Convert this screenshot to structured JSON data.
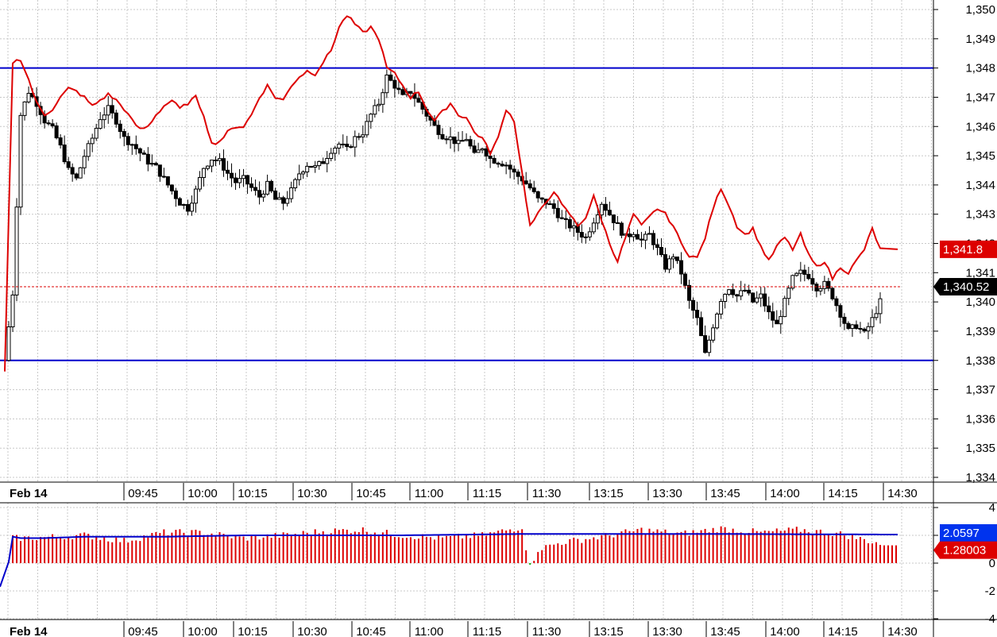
{
  "chart_data": [
    {
      "type": "candlestick",
      "name": "price-panel",
      "ylim": [
        1333.5,
        1350.3
      ],
      "y_ticks": [
        "1,334",
        "1,335",
        "1,336",
        "1,337",
        "1,338",
        "1,339",
        "1,340",
        "1,341",
        "1,342",
        "1,343",
        "1,344",
        "1,345",
        "1,346",
        "1,347",
        "1,348",
        "1,349",
        "1,350"
      ],
      "y_tick_values": [
        1334,
        1335,
        1336,
        1337,
        1338,
        1339,
        1340,
        1341,
        1342,
        1343,
        1344,
        1345,
        1346,
        1347,
        1348,
        1349,
        1350
      ],
      "x_date_label": "Feb 14",
      "x_ticks": [
        "09:45",
        "10:00",
        "10:15",
        "10:30",
        "10:45",
        "11:00",
        "11:15",
        "11:30",
        "13:15",
        "13:30",
        "13:45",
        "14:00",
        "14:15",
        "14:30"
      ],
      "horizontal_levels": [
        1348.0,
        1338.0
      ],
      "last_price": 1340.52,
      "last_price_label": "1,340.52",
      "overlay_last": 1341.8,
      "overlay_last_label": "1,341.8",
      "colors": {
        "candle": "#000000",
        "overlay": "#dd0000",
        "level": "#0000cc",
        "grid": "#c8c8c8"
      },
      "candle_close_path": [
        [
          0,
          1338.0
        ],
        [
          2,
          1340.3
        ],
        [
          4,
          1346.4
        ],
        [
          6,
          1347.2
        ],
        [
          8,
          1346.8
        ],
        [
          10,
          1346.2
        ],
        [
          12,
          1345.9
        ],
        [
          14,
          1345.3
        ],
        [
          16,
          1344.5
        ],
        [
          18,
          1344.2
        ],
        [
          20,
          1345.0
        ],
        [
          22,
          1345.6
        ],
        [
          24,
          1346.3
        ],
        [
          26,
          1346.6
        ],
        [
          28,
          1346.2
        ],
        [
          30,
          1345.6
        ],
        [
          32,
          1345.4
        ],
        [
          34,
          1345.1
        ],
        [
          36,
          1344.8
        ],
        [
          38,
          1344.6
        ],
        [
          40,
          1344.2
        ],
        [
          42,
          1343.8
        ],
        [
          44,
          1343.4
        ],
        [
          46,
          1343.2
        ],
        [
          48,
          1343.8
        ],
        [
          50,
          1344.6
        ],
        [
          52,
          1344.9
        ],
        [
          54,
          1344.8
        ],
        [
          56,
          1344.4
        ],
        [
          58,
          1344.1
        ],
        [
          60,
          1344.2
        ],
        [
          62,
          1343.9
        ],
        [
          64,
          1343.6
        ],
        [
          66,
          1344.0
        ],
        [
          68,
          1343.5
        ],
        [
          70,
          1343.4
        ],
        [
          72,
          1343.8
        ],
        [
          74,
          1344.4
        ],
        [
          76,
          1344.7
        ],
        [
          78,
          1344.6
        ],
        [
          80,
          1344.8
        ],
        [
          82,
          1345.2
        ],
        [
          84,
          1345.4
        ],
        [
          86,
          1345.2
        ],
        [
          88,
          1345.6
        ],
        [
          90,
          1345.8
        ],
        [
          92,
          1346.4
        ],
        [
          94,
          1346.8
        ],
        [
          96,
          1347.7
        ],
        [
          98,
          1347.4
        ],
        [
          100,
          1347.0
        ],
        [
          102,
          1347.2
        ],
        [
          104,
          1346.8
        ],
        [
          106,
          1346.4
        ],
        [
          108,
          1346.0
        ],
        [
          110,
          1345.7
        ],
        [
          112,
          1345.6
        ],
        [
          114,
          1345.4
        ],
        [
          116,
          1345.6
        ],
        [
          118,
          1345.0
        ],
        [
          120,
          1345.3
        ],
        [
          122,
          1344.9
        ],
        [
          124,
          1344.8
        ],
        [
          126,
          1344.7
        ],
        [
          128,
          1344.4
        ],
        [
          130,
          1344.2
        ],
        [
          132,
          1343.9
        ],
        [
          134,
          1343.5
        ],
        [
          136,
          1343.4
        ],
        [
          138,
          1343.2
        ],
        [
          140,
          1342.8
        ],
        [
          142,
          1342.6
        ],
        [
          144,
          1342.4
        ],
        [
          146,
          1342.2
        ],
        [
          148,
          1342.8
        ],
        [
          150,
          1343.4
        ],
        [
          152,
          1343.0
        ],
        [
          154,
          1342.6
        ],
        [
          156,
          1342.2
        ],
        [
          158,
          1342.4
        ],
        [
          160,
          1342.1
        ],
        [
          162,
          1342.3
        ],
        [
          164,
          1341.8
        ],
        [
          166,
          1341.2
        ],
        [
          168,
          1341.6
        ],
        [
          170,
          1341.0
        ],
        [
          172,
          1340.0
        ],
        [
          174,
          1339.4
        ],
        [
          176,
          1338.2
        ],
        [
          178,
          1339.2
        ],
        [
          180,
          1340.1
        ],
        [
          182,
          1340.5
        ],
        [
          184,
          1340.2
        ],
        [
          186,
          1340.4
        ],
        [
          188,
          1340.0
        ],
        [
          190,
          1340.2
        ],
        [
          192,
          1339.6
        ],
        [
          194,
          1339.2
        ],
        [
          196,
          1340.0
        ],
        [
          198,
          1340.8
        ],
        [
          200,
          1341.0
        ],
        [
          202,
          1340.9
        ],
        [
          204,
          1340.5
        ],
        [
          206,
          1340.6
        ],
        [
          208,
          1340.2
        ],
        [
          210,
          1339.6
        ],
        [
          212,
          1339.0
        ],
        [
          214,
          1339.2
        ],
        [
          216,
          1338.9
        ],
        [
          218,
          1339.4
        ],
        [
          220,
          1340.0
        ]
      ],
      "overlay_path": [
        [
          0,
          1337.6
        ],
        [
          2,
          1348.2
        ],
        [
          4,
          1348.3
        ],
        [
          6,
          1347.6
        ],
        [
          8,
          1346.8
        ],
        [
          10,
          1346.4
        ],
        [
          12,
          1346.6
        ],
        [
          14,
          1347.0
        ],
        [
          16,
          1347.3
        ],
        [
          18,
          1347.2
        ],
        [
          20,
          1347.0
        ],
        [
          22,
          1346.7
        ],
        [
          24,
          1346.9
        ],
        [
          26,
          1347.1
        ],
        [
          28,
          1346.9
        ],
        [
          30,
          1346.6
        ],
        [
          32,
          1346.2
        ],
        [
          34,
          1345.9
        ],
        [
          36,
          1346.0
        ],
        [
          38,
          1346.4
        ],
        [
          40,
          1346.7
        ],
        [
          42,
          1346.9
        ],
        [
          44,
          1346.6
        ],
        [
          46,
          1346.8
        ],
        [
          48,
          1347.0
        ],
        [
          50,
          1346.4
        ],
        [
          52,
          1345.4
        ],
        [
          54,
          1345.5
        ],
        [
          56,
          1345.8
        ],
        [
          58,
          1346.0
        ],
        [
          60,
          1346.0
        ],
        [
          62,
          1346.4
        ],
        [
          64,
          1347.0
        ],
        [
          66,
          1347.4
        ],
        [
          68,
          1347.0
        ],
        [
          70,
          1346.9
        ],
        [
          72,
          1347.4
        ],
        [
          74,
          1347.7
        ],
        [
          76,
          1347.9
        ],
        [
          78,
          1347.8
        ],
        [
          80,
          1348.2
        ],
        [
          82,
          1348.6
        ],
        [
          84,
          1349.4
        ],
        [
          86,
          1349.8
        ],
        [
          88,
          1349.5
        ],
        [
          90,
          1349.2
        ],
        [
          92,
          1349.4
        ],
        [
          94,
          1349.0
        ],
        [
          96,
          1348.0
        ],
        [
          98,
          1347.8
        ],
        [
          100,
          1347.4
        ],
        [
          102,
          1347.0
        ],
        [
          104,
          1347.2
        ],
        [
          106,
          1346.6
        ],
        [
          108,
          1346.2
        ],
        [
          110,
          1346.5
        ],
        [
          112,
          1346.8
        ],
        [
          114,
          1346.4
        ],
        [
          116,
          1346.3
        ],
        [
          118,
          1345.8
        ],
        [
          120,
          1345.6
        ],
        [
          122,
          1345.1
        ],
        [
          124,
          1345.6
        ],
        [
          126,
          1346.6
        ],
        [
          128,
          1346.2
        ],
        [
          130,
          1344.4
        ],
        [
          132,
          1342.6
        ],
        [
          134,
          1343.0
        ],
        [
          136,
          1343.4
        ],
        [
          138,
          1343.8
        ],
        [
          140,
          1343.3
        ],
        [
          142,
          1343.0
        ],
        [
          144,
          1342.6
        ],
        [
          146,
          1342.9
        ],
        [
          148,
          1343.6
        ],
        [
          150,
          1342.8
        ],
        [
          152,
          1342.0
        ],
        [
          154,
          1341.4
        ],
        [
          156,
          1342.2
        ],
        [
          158,
          1343.0
        ],
        [
          160,
          1342.6
        ],
        [
          162,
          1342.9
        ],
        [
          164,
          1343.2
        ],
        [
          166,
          1343.0
        ],
        [
          168,
          1342.6
        ],
        [
          170,
          1342.0
        ],
        [
          172,
          1341.6
        ],
        [
          174,
          1341.5
        ],
        [
          176,
          1342.2
        ],
        [
          178,
          1343.2
        ],
        [
          180,
          1343.9
        ],
        [
          182,
          1343.3
        ],
        [
          184,
          1342.6
        ],
        [
          186,
          1342.3
        ],
        [
          188,
          1342.5
        ],
        [
          190,
          1341.9
        ],
        [
          192,
          1341.4
        ],
        [
          194,
          1341.9
        ],
        [
          196,
          1342.2
        ],
        [
          198,
          1341.8
        ],
        [
          200,
          1342.3
        ],
        [
          202,
          1341.6
        ],
        [
          204,
          1341.2
        ],
        [
          206,
          1341.4
        ],
        [
          208,
          1340.8
        ],
        [
          210,
          1341.2
        ],
        [
          212,
          1341.0
        ],
        [
          214,
          1341.4
        ],
        [
          216,
          1341.8
        ],
        [
          218,
          1342.5
        ],
        [
          220,
          1341.8
        ]
      ]
    },
    {
      "type": "bar",
      "name": "indicator-panel",
      "ylim": [
        -4.3,
        4.3
      ],
      "y_ticks": [
        "4",
        "2",
        "0",
        "-2",
        "-4"
      ],
      "y_tick_values": [
        4,
        2,
        0,
        -2,
        -4
      ],
      "x_date_label": "Feb 14",
      "x_ticks": [
        "09:45",
        "10:00",
        "10:15",
        "10:30",
        "10:45",
        "11:00",
        "11:15",
        "11:30",
        "13:15",
        "13:30",
        "13:45",
        "14:00",
        "14:15",
        "14:30"
      ],
      "line_last": 2.0597,
      "line_last_label": "2.0597",
      "bar_last": 1.28003,
      "bar_last_label": "1.28003",
      "colors": {
        "bar": "#dd0000",
        "negative_bar": "#00aa00",
        "line": "#0000cc"
      },
      "bar_profile": [
        [
          0,
          -1.7
        ],
        [
          2,
          1.8
        ],
        [
          6,
          1.8
        ],
        [
          20,
          2.0
        ],
        [
          30,
          1.6
        ],
        [
          40,
          2.2
        ],
        [
          50,
          2.2
        ],
        [
          60,
          1.8
        ],
        [
          70,
          2.0
        ],
        [
          80,
          2.3
        ],
        [
          90,
          2.4
        ],
        [
          100,
          2.0
        ],
        [
          110,
          1.8
        ],
        [
          120,
          2.0
        ],
        [
          130,
          2.6
        ],
        [
          132,
          -0.3
        ],
        [
          134,
          1.0
        ],
        [
          140,
          1.5
        ],
        [
          150,
          1.9
        ],
        [
          160,
          2.4
        ],
        [
          170,
          2.1
        ],
        [
          180,
          2.5
        ],
        [
          190,
          2.2
        ],
        [
          200,
          2.4
        ],
        [
          210,
          2.1
        ],
        [
          220,
          1.4
        ]
      ],
      "line_profile": [
        [
          0,
          -1.7
        ],
        [
          2,
          1.9
        ],
        [
          4,
          1.8
        ],
        [
          10,
          1.8
        ],
        [
          20,
          1.9
        ],
        [
          40,
          1.9
        ],
        [
          60,
          2.0
        ],
        [
          80,
          2.0
        ],
        [
          100,
          2.0
        ],
        [
          130,
          2.1
        ],
        [
          150,
          2.1
        ],
        [
          180,
          2.1
        ],
        [
          220,
          2.06
        ]
      ]
    }
  ]
}
